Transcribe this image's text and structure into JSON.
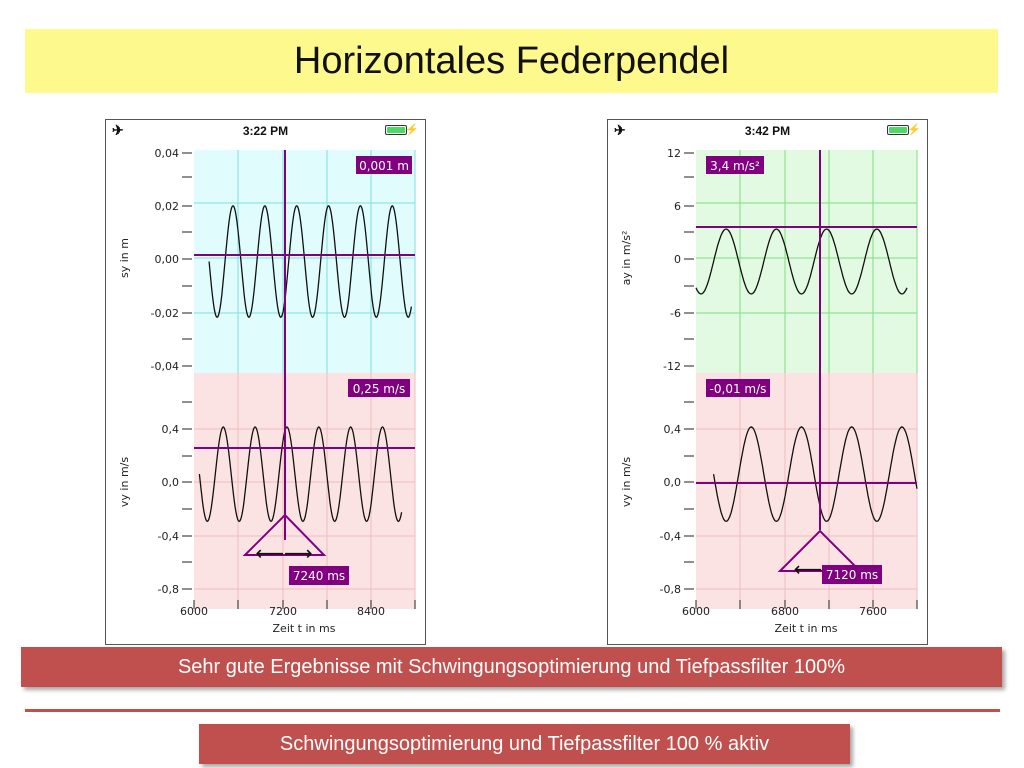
{
  "slide": {
    "title": "Horizontales Federpendel",
    "banner1": "Sehr gute Ergebnisse mit Schwingungsoptimierung und Tiefpassfilter 100%",
    "banner2": "Schwingungsoptimierung und Tiefpassfilter 100 % aktiv"
  },
  "phones": [
    {
      "time": "3:22 PM",
      "xlabel": "Zeit t in ms",
      "xticks": [
        "6000",
        "7200",
        "8400"
      ],
      "marker_time": "7240 ms",
      "top": {
        "ylabel": "sy in m",
        "yticks": [
          "0,04",
          "0,02",
          "0,00",
          "-0,02",
          "-0,04"
        ],
        "readout": "0,001 m"
      },
      "bottom": {
        "ylabel": "vy in m/s",
        "yticks": [
          "0,4",
          "0,0",
          "-0,4",
          "-0,8"
        ],
        "readout": "0,25 m/s"
      }
    },
    {
      "time": "3:42 PM",
      "xlabel": "Zeit t in ms",
      "xticks": [
        "6000",
        "6800",
        "7600"
      ],
      "marker_time": "7120 ms",
      "top": {
        "ylabel": "ay in m/s²",
        "yticks": [
          "12",
          "6",
          "0",
          "-6",
          "-12"
        ],
        "readout": "3,4 m/s²"
      },
      "bottom": {
        "ylabel": "vy in m/s",
        "yticks": [
          "0,4",
          "0,0",
          "-0,4",
          "-0,8"
        ],
        "readout": "-0,01 m/s"
      }
    }
  ],
  "colors": {
    "banner": "#c0504d",
    "title_bg": "#fdf98c",
    "cursor": "#800080",
    "top_plot_left": "#e0fcfc",
    "top_plot_right": "#e2f9e2",
    "bottom_plot": "#fce3e3"
  },
  "chart_data": [
    {
      "type": "line",
      "xlabel": "Zeit t in ms",
      "ylabel": "sy in m",
      "xlim": [
        5600,
        9000
      ],
      "ylim": [
        -0.04,
        0.04
      ],
      "series": [
        {
          "peak_times_ms": [
            6200,
            6700,
            7200,
            7650,
            8150,
            8650
          ],
          "amplitude": 0.02
        }
      ],
      "cursor": {
        "x": 7240,
        "y": 0.001
      }
    },
    {
      "type": "line",
      "xlabel": "Zeit t in ms",
      "ylabel": "vy in m/s",
      "xlim": [
        5600,
        9000
      ],
      "ylim": [
        -0.8,
        0.6
      ],
      "series": [
        {
          "peak_times_ms": [
            6050,
            6550,
            7050,
            7500,
            8000,
            8500
          ],
          "amplitude": 0.28
        }
      ],
      "cursor": {
        "x": 7240,
        "y": 0.25
      }
    },
    {
      "type": "line",
      "xlabel": "Zeit t in ms",
      "ylabel": "ay in m/s²",
      "xlim": [
        5800,
        8000
      ],
      "ylim": [
        -12,
        12
      ],
      "series": [
        {
          "peak_times_ms": [
            6100,
            6600,
            7100,
            7600
          ],
          "amplitude": 3.5
        }
      ],
      "cursor": {
        "x": 7120,
        "y": 3.4
      }
    },
    {
      "type": "line",
      "xlabel": "Zeit t in ms",
      "ylabel": "vy in m/s",
      "xlim": [
        5800,
        8000
      ],
      "ylim": [
        -0.8,
        0.6
      ],
      "series": [
        {
          "peak_times_ms": [
            6350,
            6850,
            7350,
            7850
          ],
          "amplitude": 0.28
        }
      ],
      "cursor": {
        "x": 7120,
        "y": -0.01
      }
    }
  ]
}
